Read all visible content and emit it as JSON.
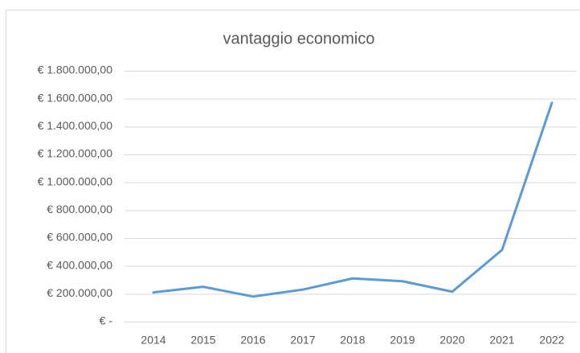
{
  "chart_data": {
    "type": "line",
    "title": "vantaggio economico",
    "categories": [
      "2014",
      "2015",
      "2016",
      "2017",
      "2018",
      "2019",
      "2020",
      "2021",
      "2022"
    ],
    "series": [
      {
        "name": "vantaggio economico",
        "color": "#5b9bd5",
        "values": [
          210000,
          250000,
          180000,
          230000,
          310000,
          290000,
          215000,
          515000,
          1570000
        ]
      }
    ],
    "ylim": [
      0,
      1800000
    ],
    "yticks": [
      {
        "value": 0,
        "label": "€ -"
      },
      {
        "value": 200000,
        "label": "€ 200.000,00"
      },
      {
        "value": 400000,
        "label": "€ 400.000,00"
      },
      {
        "value": 600000,
        "label": "€ 600.000,00"
      },
      {
        "value": 800000,
        "label": "€ 800.000,00"
      },
      {
        "value": 1000000,
        "label": "€ 1.000.000,00"
      },
      {
        "value": 1200000,
        "label": "€ 1.200.000,00"
      },
      {
        "value": 1400000,
        "label": "€ 1.400.000,00"
      },
      {
        "value": 1600000,
        "label": "€ 1.600.000,00"
      },
      {
        "value": 1800000,
        "label": "€ 1.800.000,00"
      }
    ],
    "grid": true
  }
}
